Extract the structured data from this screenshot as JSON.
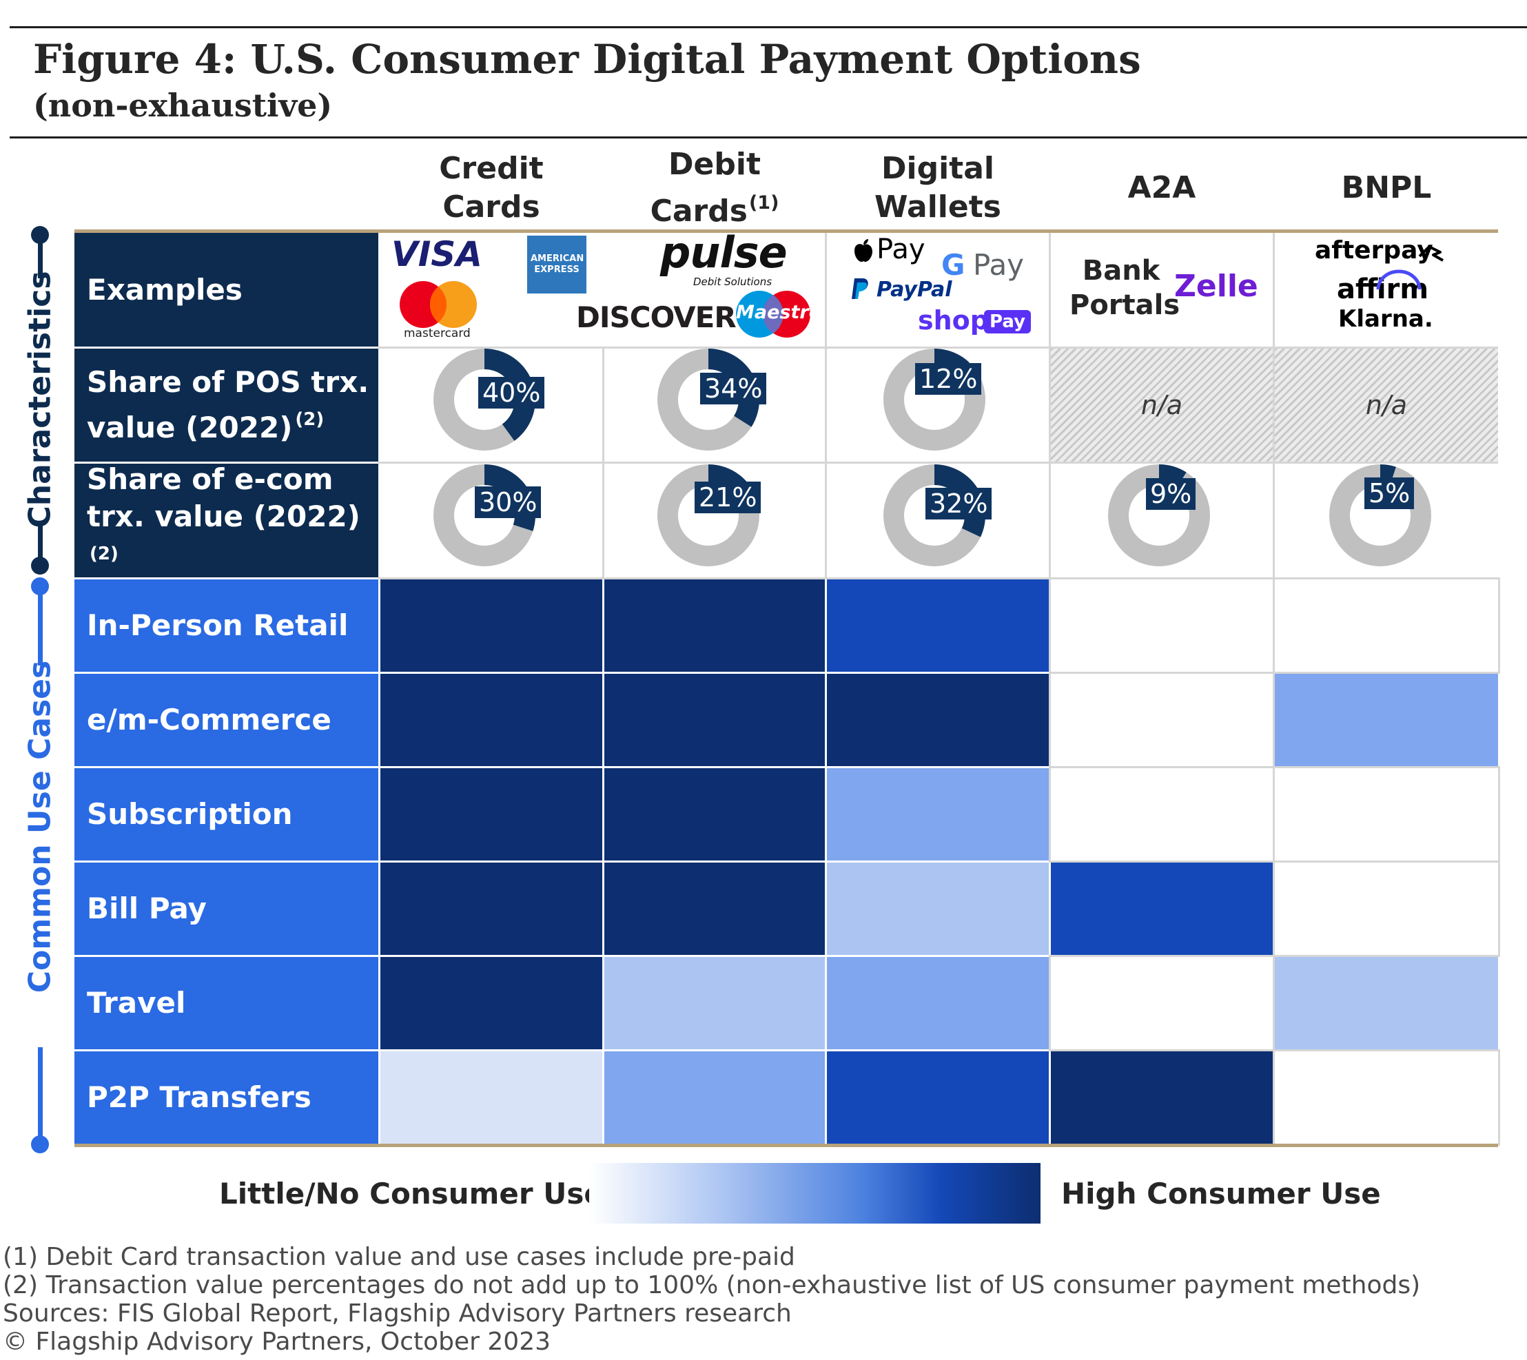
{
  "title": {
    "line1": "Figure 4: U.S. Consumer Digital Payment Options",
    "line2": "(non-exhaustive)"
  },
  "colors": {
    "navy_label": "#0d2b4e",
    "blue_label": "#2a6ae3",
    "high": "#0d2e70",
    "medium_high": "#1448b8",
    "medium": "#7fa6ee",
    "low": "#abc4f2",
    "very_low": "#d9e3f8",
    "none": "#ffffff",
    "donut_grey": "#c0c0c0",
    "donut_share": "#0f3460"
  },
  "columns": [
    {
      "label": "Credit Cards",
      "sup": ""
    },
    {
      "label": "Debit Cards",
      "sup": "(1)"
    },
    {
      "label": "Digital Wallets",
      "sup": ""
    },
    {
      "label": "A2A",
      "sup": ""
    },
    {
      "label": "BNPL",
      "sup": ""
    }
  ],
  "sections": {
    "characteristics": "Characteristics",
    "use_cases": "Common Use Cases"
  },
  "rows": {
    "examples": "Examples",
    "pos": {
      "label": "Share of POS trx. value (2022)",
      "sup": "(2)"
    },
    "ecom": {
      "label": "Share of e-com trx. value (2022)",
      "sup": "(2)"
    }
  },
  "examples": {
    "credit": [
      "VISA",
      "AMERICAN EXPRESS",
      "mastercard"
    ],
    "debit": [
      "pulse",
      "Debit Solutions",
      "DISCOVER",
      "Maestro"
    ],
    "wallets": [
      "Pay",
      "Pay",
      "PayPal",
      "shop",
      "Pay"
    ],
    "a2a": [
      "Bank Portals",
      "Zelle"
    ],
    "bnpl": [
      "afterpay",
      "affirm",
      "Klarna."
    ]
  },
  "chart_data": [
    {
      "type": "pie",
      "title": "Share of POS trx. value (2022)",
      "categories": [
        "Credit Cards",
        "Debit Cards",
        "Digital Wallets",
        "A2A",
        "BNPL"
      ],
      "values": [
        40,
        34,
        12,
        null,
        null
      ],
      "labels": [
        "40%",
        "34%",
        "12%",
        "n/a",
        "n/a"
      ],
      "unit": "%"
    },
    {
      "type": "pie",
      "title": "Share of e-com trx. value (2022)",
      "categories": [
        "Credit Cards",
        "Debit Cards",
        "Digital Wallets",
        "A2A",
        "BNPL"
      ],
      "values": [
        30,
        21,
        32,
        9,
        5
      ],
      "labels": [
        "30%",
        "21%",
        "32%",
        "9%",
        "5%"
      ],
      "unit": "%"
    },
    {
      "type": "heatmap",
      "x": [
        "Credit Cards",
        "Debit Cards",
        "Digital Wallets",
        "A2A",
        "BNPL"
      ],
      "y": [
        "In-Person Retail",
        "e/m-Commerce",
        "Subscription",
        "Bill Pay",
        "Travel",
        "P2P Transfers"
      ],
      "scale": {
        "min_label": "Little/No Consumer Use",
        "max_label": "High Consumer Use",
        "range": [
          0,
          5
        ]
      },
      "values": [
        [
          5,
          5,
          4,
          0,
          0
        ],
        [
          5,
          5,
          5,
          0,
          3
        ],
        [
          5,
          5,
          3,
          0,
          0
        ],
        [
          5,
          5,
          2,
          4,
          0
        ],
        [
          5,
          2,
          3,
          0,
          2
        ],
        [
          1,
          3,
          4,
          5,
          0
        ]
      ]
    }
  ],
  "legend": {
    "low_label": "Little/No Consumer Use",
    "high_label": "High Consumer Use"
  },
  "footnotes": [
    "(1) Debit Card transaction value and use cases include pre-paid",
    "(2) Transaction value percentages do not add up to 100% (non-exhaustive list of US consumer payment methods)",
    "Sources: FIS Global Report, Flagship Advisory Partners research",
    "© Flagship Advisory Partners, October 2023"
  ]
}
